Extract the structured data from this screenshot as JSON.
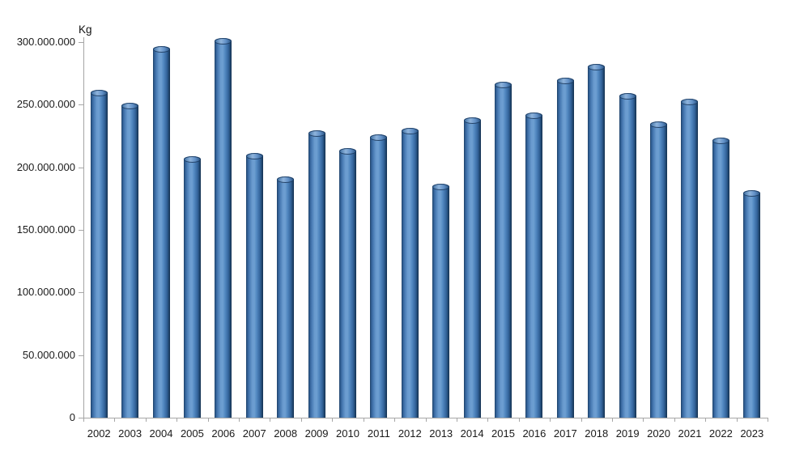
{
  "chart_data": {
    "type": "bar",
    "title": "",
    "xlabel": "",
    "ylabel": "Kg",
    "legend": null,
    "grid": false,
    "background_color": "#ffffff",
    "axis_color": "#a6a6a6",
    "text_color": "#1a1a1a",
    "bar_fill_color": "#4f81bd",
    "bar_edge_color": "#17375e",
    "bar_highlight_color": "#8fb4dc",
    "bar_style": "cylinder",
    "ylim": [
      0,
      300000000
    ],
    "ytick_step": 50000000,
    "ytick_labels": [
      "0",
      "50.000.000",
      "100.000.000",
      "150.000.000",
      "200.000.000",
      "250.000.000",
      "300.000.000"
    ],
    "categories": [
      "2002",
      "2003",
      "2004",
      "2005",
      "2006",
      "2007",
      "2008",
      "2009",
      "2010",
      "2011",
      "2012",
      "2013",
      "2014",
      "2015",
      "2016",
      "2017",
      "2018",
      "2019",
      "2020",
      "2021",
      "2022",
      "2023"
    ],
    "values": [
      259000000,
      249000000,
      294000000,
      206000000,
      301000000,
      209000000,
      190000000,
      227000000,
      213000000,
      224000000,
      229000000,
      184000000,
      237000000,
      266000000,
      241000000,
      269000000,
      280000000,
      257000000,
      234000000,
      252000000,
      221000000,
      179000000
    ]
  }
}
